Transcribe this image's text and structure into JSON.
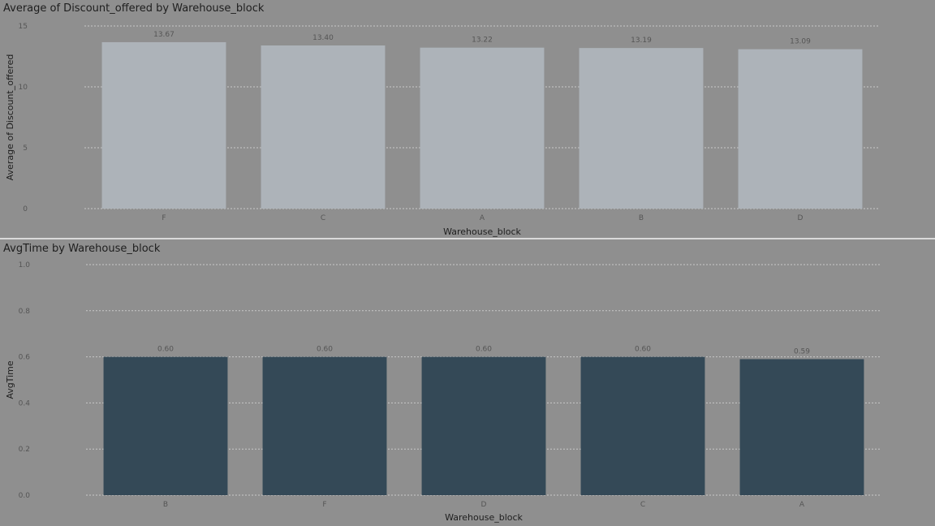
{
  "colors": {
    "background": "#8f8f8f",
    "bar_top": "#adb3b9",
    "bar_bottom": "#344957",
    "divider": "#d9d9d9"
  },
  "chart_data": [
    {
      "type": "bar",
      "title": "Average of Discount_offered by Warehouse_block",
      "xlabel": "Warehouse_block",
      "ylabel": "Average of Discount_offered",
      "categories": [
        "F",
        "C",
        "A",
        "B",
        "D"
      ],
      "values": [
        13.67,
        13.4,
        13.22,
        13.19,
        13.09
      ],
      "data_labels": [
        "13.67",
        "13.40",
        "13.22",
        "13.19",
        "13.09"
      ],
      "ylim": [
        0,
        15
      ],
      "yticks": [
        0,
        5,
        10,
        15
      ],
      "ytick_labels": [
        "0",
        "5",
        "10",
        "15"
      ],
      "grid": true,
      "color": "#adb3b9"
    },
    {
      "type": "bar",
      "title": "AvgTime by Warehouse_block",
      "xlabel": "Warehouse_block",
      "ylabel": "AvgTime",
      "categories": [
        "B",
        "F",
        "D",
        "C",
        "A"
      ],
      "values": [
        0.6,
        0.6,
        0.6,
        0.6,
        0.59
      ],
      "data_labels": [
        "0.60",
        "0.60",
        "0.60",
        "0.60",
        "0.59"
      ],
      "ylim": [
        0,
        1
      ],
      "yticks": [
        0,
        0.2,
        0.4,
        0.6,
        0.8,
        1.0
      ],
      "ytick_labels": [
        "0.0",
        "0.2",
        "0.4",
        "0.6",
        "0.8",
        "1.0"
      ],
      "grid": true,
      "color": "#344957"
    }
  ]
}
